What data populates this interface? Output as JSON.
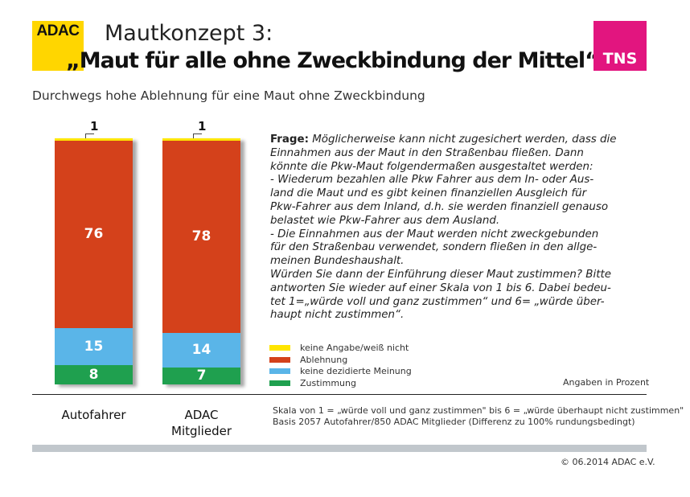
{
  "header": {
    "logo": "ADAC",
    "title_line1": "Mautkonzept 3:",
    "title_line2": "„Maut für alle ohne Zweckbindung der Mittel“",
    "tns_logo": "TNS"
  },
  "subtitle": "Durchwegs hohe Ablehnung für eine Maut ohne Zweckbindung",
  "question": {
    "label": "Frage:",
    "text": " Möglicherweise kann nicht zugesichert werden, dass die\nEinnahmen aus der Maut in den Straßenbau fließen. Dann\nkönnte die Pkw-Maut folgendermaßen ausgestaltet werden:\n- Wiederum bezahlen alle Pkw Fahrer aus dem In- oder Aus-\nland die Maut und es gibt keinen finanziellen Ausgleich für\nPkw-Fahrer aus dem Inland, d.h. sie werden finanziell genauso\nbelastet wie Pkw-Fahrer aus dem Ausland.\n- Die Einnahmen aus der Maut werden nicht zweckgebunden\nfür den Straßenbau verwendet, sondern fließen in den allge-\nmeinen Bundeshaushalt.\nWürden Sie dann der Einführung dieser Maut zustimmen? Bitte\nantworten Sie wieder auf einer Skala von 1 bis 6. Dabei bedeu-\ntet  1=„würde voll und ganz zustimmen“ und 6= „würde über-\nhaupt nicht zustimmen“."
  },
  "chart_data": {
    "type": "bar",
    "stacked": true,
    "orientation": "vertical",
    "unit_note": "Angaben in Prozent",
    "ylim": [
      0,
      100
    ],
    "grid": false,
    "legend_placement": "bottom-right",
    "categories": [
      "Autofahrer",
      "ADAC Mitglieder"
    ],
    "series": [
      {
        "name": "Zustimmung",
        "color": "#1fa04f",
        "values": [
          8,
          7
        ]
      },
      {
        "name": "keine dezidierte Meinung",
        "color": "#5ab5e8",
        "values": [
          15,
          14
        ]
      },
      {
        "name": "Ablehnung",
        "color": "#d4411b",
        "values": [
          76,
          78
        ]
      },
      {
        "name": "keine Angabe/weiß nicht",
        "color": "#ffe500",
        "values": [
          1,
          1
        ]
      }
    ]
  },
  "legend_order": [
    3,
    2,
    1,
    0
  ],
  "notes": {
    "line1": "Skala von 1 = „würde voll und ganz zustimmen\" bis 6 = „würde überhaupt nicht zustimmen\"",
    "line2": "Basis 2057 Autofahrer/850 ADAC Mitglieder (Differenz zu 100% rundungsbedingt)"
  },
  "copyright": "© 06.2014  ADAC e.V."
}
